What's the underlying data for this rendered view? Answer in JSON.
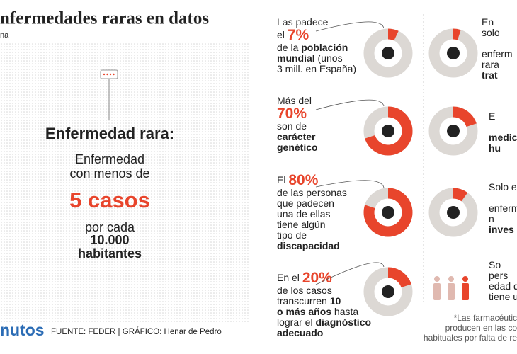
{
  "header": {
    "title": "nfermedades raras en datos",
    "subtitle": "na"
  },
  "definition": {
    "heading": "Enfermedad rara:",
    "line1": "Enfermedad",
    "line2": "con menos de",
    "highlight": "5 casos",
    "line3": "por cada",
    "line4": "10.000",
    "line5": "habitantes"
  },
  "footer": {
    "brand": "nutos",
    "source": "FUENTE: FEDER  |  GRÁFICO: Henar de Pedro"
  },
  "facts": [
    {
      "pre": [
        [
          "Las padece"
        ]
      ],
      "pct_prefix": "el ",
      "value": 7,
      "value_label": "7%",
      "post": [
        [
          "de la ",
          {
            "b": "población"
          }
        ],
        [
          {
            "b": "mundial"
          },
          " (unos"
        ],
        [
          "3 mill. en España)"
        ]
      ]
    },
    {
      "pre": [
        [
          "Más del"
        ]
      ],
      "value": 70,
      "value_label": "70%",
      "post": [
        [
          "son de"
        ],
        [
          {
            "b": "carácter"
          }
        ],
        [
          {
            "b": "genético"
          }
        ]
      ]
    },
    {
      "pre": [],
      "pct_prefix": "El ",
      "value": 80,
      "value_label": "80%",
      "post": [
        [
          "de las personas"
        ],
        [
          "que padecen"
        ],
        [
          "una de ellas"
        ],
        [
          "tiene algún"
        ],
        [
          "tipo de"
        ],
        [
          {
            "b": "discapacidad"
          }
        ]
      ]
    },
    {
      "pre": [],
      "pct_prefix": "En el ",
      "value": 20,
      "value_label": "20%",
      "post": [
        [
          "de los casos"
        ],
        [
          "transcurren ",
          {
            "b": "10"
          }
        ],
        [
          {
            "b": "o más años"
          },
          " hasta"
        ],
        [
          "lograr el ",
          {
            "b": "diagnóstico"
          }
        ],
        [
          {
            "b": "adecuado"
          }
        ]
      ]
    },
    {
      "lines": [
        [
          "En"
        ],
        [
          "solo"
        ],
        [],
        [
          "enferm"
        ],
        [
          "rara"
        ],
        [
          {
            "b": "trat"
          }
        ]
      ],
      "value": 5
    },
    {
      "lines": [
        [
          "E"
        ],
        [],
        [
          {
            "b": "medic"
          }
        ],
        [
          {
            "b": "hu"
          }
        ]
      ],
      "value": 20
    },
    {
      "lines": [
        [
          "Solo e"
        ],
        [],
        [
          "enferm"
        ],
        [
          "n"
        ],
        [
          {
            "b": "inves"
          }
        ]
      ],
      "value": 10
    },
    {
      "lines": [
        [
          "So"
        ],
        [
          "pers"
        ],
        [
          "edad de"
        ],
        [
          "tiene un"
        ]
      ]
    }
  ],
  "footnote": [
    "*Las farmacéutic",
    "producen en las co",
    "habituales por falta de re"
  ]
}
